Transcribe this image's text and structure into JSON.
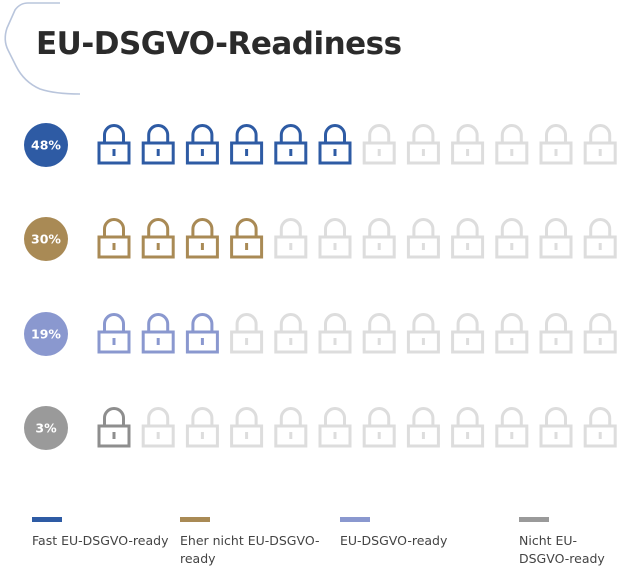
{
  "title": "EU-DSGVO-Readiness",
  "chart_data": {
    "type": "pictograph",
    "icon": "padlock-icon",
    "icons_per_row": 12,
    "inactive_color": "#dddddd",
    "rows": [
      {
        "label": "48%",
        "value": 48,
        "filled": 6,
        "color": "#2e5ba4",
        "badge_color": "#2e5ba4"
      },
      {
        "label": "30%",
        "value": 30,
        "filled": 4,
        "color": "#a98a55",
        "badge_color": "#a98a55"
      },
      {
        "label": "19%",
        "value": 19,
        "filled": 3,
        "color": "#8a98cf",
        "badge_color": "#8a98cf"
      },
      {
        "label": "3%",
        "value": 3,
        "filled": 1,
        "color": "#8e8e8e",
        "badge_color": "#9a9a9a"
      }
    ],
    "legend": [
      {
        "label": "Fast EU-DSGVO-ready",
        "color": "#2e5ba4"
      },
      {
        "label": "Eher nicht EU-DSGVO-ready",
        "color": "#a98a55"
      },
      {
        "label": "EU-DSGVO-ready",
        "color": "#8a98cf"
      },
      {
        "label": "Nicht EU-DSGVO-ready",
        "color": "#9a9a9a"
      }
    ]
  }
}
